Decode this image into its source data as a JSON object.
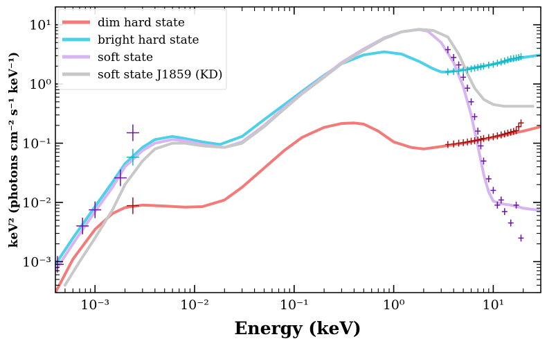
{
  "chart_data": {
    "type": "line",
    "title": "",
    "xlabel": "Energy (keV)",
    "ylabel": "keV² (photons cm⁻² s⁻¹ keV⁻¹)",
    "xscale": "log",
    "yscale": "log",
    "xlim": [
      0.0004,
      30
    ],
    "ylim": [
      0.0003,
      20
    ],
    "x_ticks": [
      {
        "value": 0.001,
        "label": "10⁻³"
      },
      {
        "value": 0.01,
        "label": "10⁻²"
      },
      {
        "value": 0.1,
        "label": "10⁻¹"
      },
      {
        "value": 1,
        "label": "10⁰"
      },
      {
        "value": 10,
        "label": "10¹"
      }
    ],
    "y_ticks": [
      {
        "value": 0.001,
        "label": "10⁻³"
      },
      {
        "value": 0.01,
        "label": "10⁻²"
      },
      {
        "value": 0.1,
        "label": "10⁻¹"
      },
      {
        "value": 1,
        "label": "10⁰"
      },
      {
        "value": 10,
        "label": "10¹"
      }
    ],
    "legend_position": "top-left",
    "series": [
      {
        "name": "dim hard state",
        "color": "#f47a7a",
        "x": [
          0.0004,
          0.0006,
          0.001,
          0.0015,
          0.002,
          0.003,
          0.005,
          0.008,
          0.012,
          0.02,
          0.03,
          0.05,
          0.08,
          0.12,
          0.2,
          0.3,
          0.4,
          0.5,
          0.7,
          1.0,
          1.5,
          2.0,
          3.0,
          5.0,
          10,
          20,
          30
        ],
        "y": [
          0.0003,
          0.0011,
          0.0035,
          0.0065,
          0.0082,
          0.009,
          0.0087,
          0.0083,
          0.0085,
          0.011,
          0.018,
          0.038,
          0.076,
          0.125,
          0.185,
          0.215,
          0.22,
          0.21,
          0.16,
          0.105,
          0.085,
          0.08,
          0.088,
          0.1,
          0.125,
          0.16,
          0.19
        ]
      },
      {
        "name": "bright hard state",
        "color": "#4dd0ea",
        "x": [
          0.0004,
          0.0006,
          0.001,
          0.0015,
          0.002,
          0.003,
          0.004,
          0.006,
          0.008,
          0.012,
          0.018,
          0.03,
          0.05,
          0.08,
          0.12,
          0.2,
          0.3,
          0.5,
          0.8,
          1.2,
          1.8,
          2.5,
          3.0,
          3.5,
          5.0,
          8.0,
          12,
          20,
          30
        ],
        "y": [
          0.0009,
          0.0025,
          0.0085,
          0.022,
          0.045,
          0.085,
          0.115,
          0.13,
          0.12,
          0.105,
          0.095,
          0.13,
          0.25,
          0.45,
          0.75,
          1.4,
          2.2,
          3.1,
          3.5,
          3.2,
          2.4,
          1.8,
          1.6,
          1.6,
          1.75,
          2.0,
          2.3,
          2.8,
          3.1
        ]
      },
      {
        "name": "soft state",
        "color": "#d7b4f3",
        "x": [
          0.0004,
          0.0006,
          0.001,
          0.0015,
          0.002,
          0.003,
          0.004,
          0.006,
          0.008,
          0.012,
          0.02,
          0.03,
          0.05,
          0.08,
          0.12,
          0.2,
          0.3,
          0.5,
          0.8,
          1.2,
          1.8,
          2.2,
          3.0,
          4.0,
          5.0,
          6.0,
          7.0,
          8.0,
          9.0,
          10,
          12,
          15,
          20,
          30
        ],
        "y": [
          0.0007,
          0.002,
          0.007,
          0.018,
          0.04,
          0.075,
          0.1,
          0.115,
          0.11,
          0.095,
          0.085,
          0.105,
          0.2,
          0.4,
          0.7,
          1.35,
          2.3,
          3.9,
          6.0,
          7.6,
          8.3,
          7.8,
          5.0,
          2.3,
          0.9,
          0.3,
          0.09,
          0.03,
          0.015,
          0.0105,
          0.0095,
          0.009,
          0.008,
          0.0073
        ]
      },
      {
        "name": "soft state J1859 (KD)",
        "color": "#c8c8c8",
        "x": [
          0.0005,
          0.0007,
          0.001,
          0.0015,
          0.002,
          0.003,
          0.004,
          0.006,
          0.008,
          0.012,
          0.02,
          0.03,
          0.05,
          0.08,
          0.12,
          0.2,
          0.3,
          0.5,
          0.8,
          1.2,
          1.8,
          2.5,
          3.5,
          4.5,
          5.5,
          6.5,
          8.0,
          10,
          13,
          18,
          25
        ],
        "y": [
          0.0004,
          0.001,
          0.0025,
          0.0075,
          0.02,
          0.05,
          0.08,
          0.1,
          0.1,
          0.09,
          0.085,
          0.1,
          0.19,
          0.38,
          0.68,
          1.3,
          2.2,
          3.7,
          5.8,
          7.6,
          8.4,
          8.0,
          6.2,
          3.2,
          1.5,
          0.85,
          0.55,
          0.45,
          0.42,
          0.42,
          0.42
        ]
      }
    ],
    "data_points": [
      {
        "name": "dim hard state data",
        "color": "#a01010",
        "x": [
          0.0024,
          3.5,
          4.0,
          4.5,
          5.0,
          5.5,
          6.0,
          6.5,
          7.0,
          7.5,
          8.0,
          9.0,
          10,
          11,
          12,
          13,
          14,
          15,
          16,
          17,
          18,
          19
        ],
        "y": [
          0.0088,
          0.095,
          0.097,
          0.1,
          0.102,
          0.105,
          0.108,
          0.11,
          0.113,
          0.116,
          0.12,
          0.124,
          0.128,
          0.133,
          0.138,
          0.143,
          0.148,
          0.153,
          0.158,
          0.163,
          0.19,
          0.22
        ]
      },
      {
        "name": "bright hard state data",
        "color": "#10b8c4",
        "x": [
          0.0024,
          3.5,
          4.0,
          4.5,
          5.0,
          5.5,
          6.0,
          6.5,
          7.0,
          7.5,
          8.0,
          9.0,
          10,
          11,
          12,
          13,
          14,
          15,
          16,
          17,
          18,
          19
        ],
        "y": [
          0.058,
          1.6,
          1.62,
          1.65,
          1.7,
          1.74,
          1.8,
          1.85,
          1.9,
          1.95,
          2.0,
          2.08,
          2.15,
          2.25,
          2.35,
          2.45,
          2.55,
          2.65,
          2.7,
          2.75,
          2.8,
          2.9
        ]
      },
      {
        "name": "soft state data",
        "color": "#6a12a8",
        "x": [
          0.00042,
          0.00075,
          0.001,
          0.0018,
          0.0024,
          3.5,
          4.0,
          4.5,
          5.0,
          5.5,
          6.0,
          6.5,
          7.0,
          7.5,
          8.0,
          9.0,
          10,
          11,
          12,
          13,
          15,
          17,
          19
        ],
        "y": [
          0.0009,
          0.004,
          0.0075,
          0.026,
          0.15,
          3.8,
          2.8,
          2.1,
          1.3,
          0.85,
          0.5,
          0.28,
          0.16,
          0.09,
          0.05,
          0.025,
          0.016,
          0.009,
          0.011,
          0.007,
          0.0045,
          0.009,
          0.0025
        ]
      }
    ]
  }
}
